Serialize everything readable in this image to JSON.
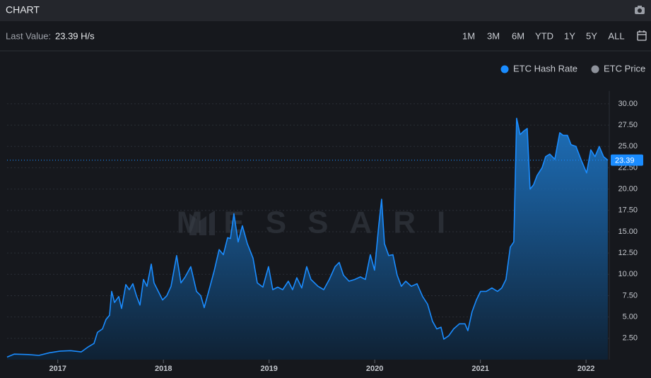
{
  "header": {
    "title": "CHART"
  },
  "toolbar": {
    "last_value_label": "Last Value:",
    "last_value": "23.39 H/s",
    "ranges": [
      "1M",
      "3M",
      "6M",
      "YTD",
      "1Y",
      "5Y",
      "ALL"
    ],
    "active_range_index": 6
  },
  "chart_data": {
    "type": "area",
    "watermark": "MESSARI",
    "x": [
      2016.52,
      2016.587,
      2016.721,
      2016.821,
      2016.921,
      2017.022,
      2017.122,
      2017.222,
      2017.289,
      2017.343,
      2017.376,
      2017.423,
      2017.456,
      2017.49,
      2017.51,
      2017.537,
      2017.577,
      2017.604,
      2017.644,
      2017.677,
      2017.711,
      2017.744,
      2017.778,
      2017.811,
      2017.844,
      2017.885,
      2017.911,
      2017.951,
      2017.992,
      2018.032,
      2018.072,
      2018.125,
      2018.166,
      2018.206,
      2018.259,
      2018.313,
      2018.353,
      2018.386,
      2018.433,
      2018.48,
      2018.527,
      2018.567,
      2018.607,
      2018.634,
      2018.667,
      2018.707,
      2018.747,
      2018.794,
      2018.848,
      2018.888,
      2018.941,
      2018.995,
      2019.035,
      2019.082,
      2019.129,
      2019.182,
      2019.222,
      2019.262,
      2019.309,
      2019.356,
      2019.396,
      2019.463,
      2019.517,
      2019.57,
      2019.624,
      2019.664,
      2019.704,
      2019.757,
      2019.811,
      2019.864,
      2019.911,
      2019.958,
      2019.998,
      2020.038,
      2020.065,
      2020.092,
      2020.132,
      2020.172,
      2020.212,
      2020.252,
      2020.293,
      2020.346,
      2020.4,
      2020.453,
      2020.5,
      2020.547,
      2020.587,
      2020.627,
      2020.654,
      2020.701,
      2020.747,
      2020.801,
      2020.854,
      2020.881,
      2020.921,
      2020.962,
      2021.002,
      2021.055,
      2021.109,
      2021.162,
      2021.202,
      2021.242,
      2021.283,
      2021.316,
      2021.343,
      2021.376,
      2021.41,
      2021.443,
      2021.47,
      2021.503,
      2021.537,
      2021.584,
      2021.617,
      2021.657,
      2021.704,
      2021.751,
      2021.784,
      2021.824,
      2021.858,
      2021.905,
      2021.951,
      2022.005,
      2022.045,
      2022.085,
      2022.125,
      2022.166,
      2022.206
    ],
    "series": [
      {
        "name": "ETC Hash Rate",
        "color": "#1a8cff",
        "values": [
          0.3,
          0.65,
          0.6,
          0.5,
          0.8,
          1.0,
          1.05,
          0.9,
          1.5,
          1.9,
          3.2,
          3.6,
          4.7,
          5.2,
          8.0,
          6.7,
          7.4,
          6.0,
          8.8,
          8.2,
          8.9,
          7.5,
          6.4,
          9.4,
          8.6,
          11.2,
          9.0,
          8.0,
          7.0,
          7.5,
          8.6,
          12.2,
          9.0,
          9.7,
          10.9,
          8.0,
          7.5,
          6.1,
          8.2,
          10.4,
          12.9,
          12.3,
          14.3,
          14.2,
          17.1,
          13.8,
          15.7,
          13.6,
          11.9,
          9.0,
          8.5,
          10.9,
          8.2,
          8.5,
          8.2,
          9.2,
          8.2,
          9.6,
          8.4,
          10.9,
          9.4,
          8.6,
          8.2,
          9.4,
          10.9,
          11.4,
          9.9,
          9.2,
          9.4,
          9.7,
          9.4,
          12.3,
          10.5,
          15.7,
          18.8,
          13.6,
          12.2,
          12.3,
          9.9,
          8.6,
          9.2,
          8.6,
          8.9,
          7.4,
          6.5,
          4.5,
          3.6,
          3.8,
          2.4,
          2.8,
          3.6,
          4.2,
          4.2,
          3.4,
          5.6,
          7.0,
          8.0,
          8.0,
          8.4,
          8.0,
          8.4,
          9.4,
          13.2,
          13.8,
          28.3,
          26.4,
          26.8,
          27.1,
          20.0,
          20.5,
          21.6,
          22.5,
          23.8,
          24.1,
          23.5,
          26.6,
          26.3,
          26.3,
          25.2,
          25.0,
          23.5,
          21.9,
          24.6,
          23.8,
          25.0,
          23.8,
          23.39
        ]
      },
      {
        "name": "ETC Price",
        "color": "#8e929b",
        "hidden": true
      }
    ],
    "xlim": [
      2016.52,
      2022.22
    ],
    "xticks": [
      2017,
      2018,
      2019,
      2020,
      2021,
      2022
    ],
    "ylim": [
      0,
      31.5
    ],
    "yticks": [
      {
        "value": 2.5,
        "label": "2.50"
      },
      {
        "value": 5,
        "label": "5.00"
      },
      {
        "value": 7.5,
        "label": "7.50"
      },
      {
        "value": 10,
        "label": "10.00"
      },
      {
        "value": 12.5,
        "label": "12.50"
      },
      {
        "value": 15,
        "label": "15.00"
      },
      {
        "value": 17.5,
        "label": "17.50"
      },
      {
        "value": 20,
        "label": "20.00"
      },
      {
        "value": 22.5,
        "label": "22.50"
      },
      {
        "value": 25,
        "label": "25.00"
      },
      {
        "value": 27.5,
        "label": "27.50"
      },
      {
        "value": 30,
        "label": "30.00"
      }
    ],
    "grid": true,
    "legend": "top-right"
  }
}
